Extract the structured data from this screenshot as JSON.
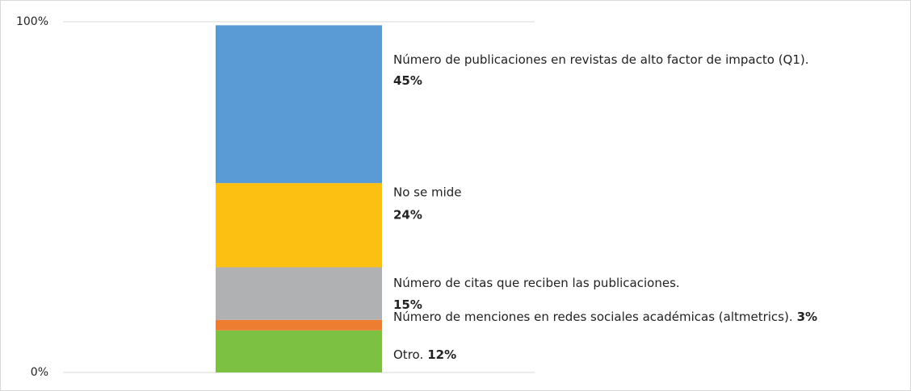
{
  "chart_data": {
    "type": "stacked_bar",
    "series": [
      {
        "name": "Otro.",
        "color": "#7cc142",
        "values": [
          12
        ],
        "value_labels": [
          "12%"
        ]
      },
      {
        "name": "Número de menciones en redes sociales académicas (altmetrics).",
        "color": "#ed7d31",
        "values": [
          3
        ],
        "value_labels": [
          "3%"
        ]
      },
      {
        "name": "Número de citas que reciben las publicaciones.",
        "color": "#b0b1b3",
        "values": [
          15
        ],
        "value_labels": [
          "15%"
        ]
      },
      {
        "name": "No se mide",
        "color": "#fbc012",
        "values": [
          24
        ],
        "value_labels": [
          "24%"
        ]
      },
      {
        "name": "Número de publicaciones en revistas de alto factor de impacto (Q1).",
        "color": "#5b9bd5",
        "values": [
          45
        ],
        "value_labels": [
          "45%"
        ]
      }
    ],
    "ylim": [
      0,
      100
    ],
    "yticks": [
      {
        "value": 0,
        "label": "0%"
      },
      {
        "value": 100,
        "label": "100%"
      }
    ],
    "grid": true
  }
}
